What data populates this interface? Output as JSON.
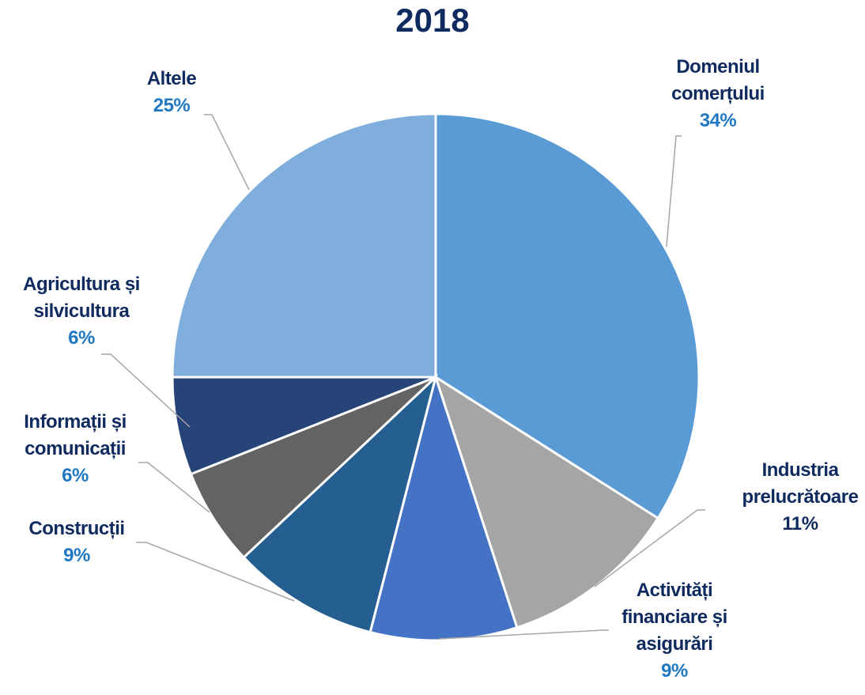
{
  "chart_data": {
    "type": "pie",
    "title": "2018",
    "categories": [
      "Domeniul comerțului",
      "Industria prelucrătoare",
      "Activități financiare și asigurări",
      "Construcții",
      "Informații și comunicații",
      "Agricultura și silvicultura",
      "Altele"
    ],
    "values": [
      34,
      11,
      9,
      9,
      6,
      6,
      25
    ],
    "value_labels": [
      "34%",
      "11%",
      "9%",
      "9%",
      "6%",
      "6%",
      "25%"
    ],
    "colors": [
      "#5b9bd5",
      "#a5a5a5",
      "#4472c4",
      "#255e91",
      "#636363",
      "#264478",
      "#7faedc"
    ]
  }
}
